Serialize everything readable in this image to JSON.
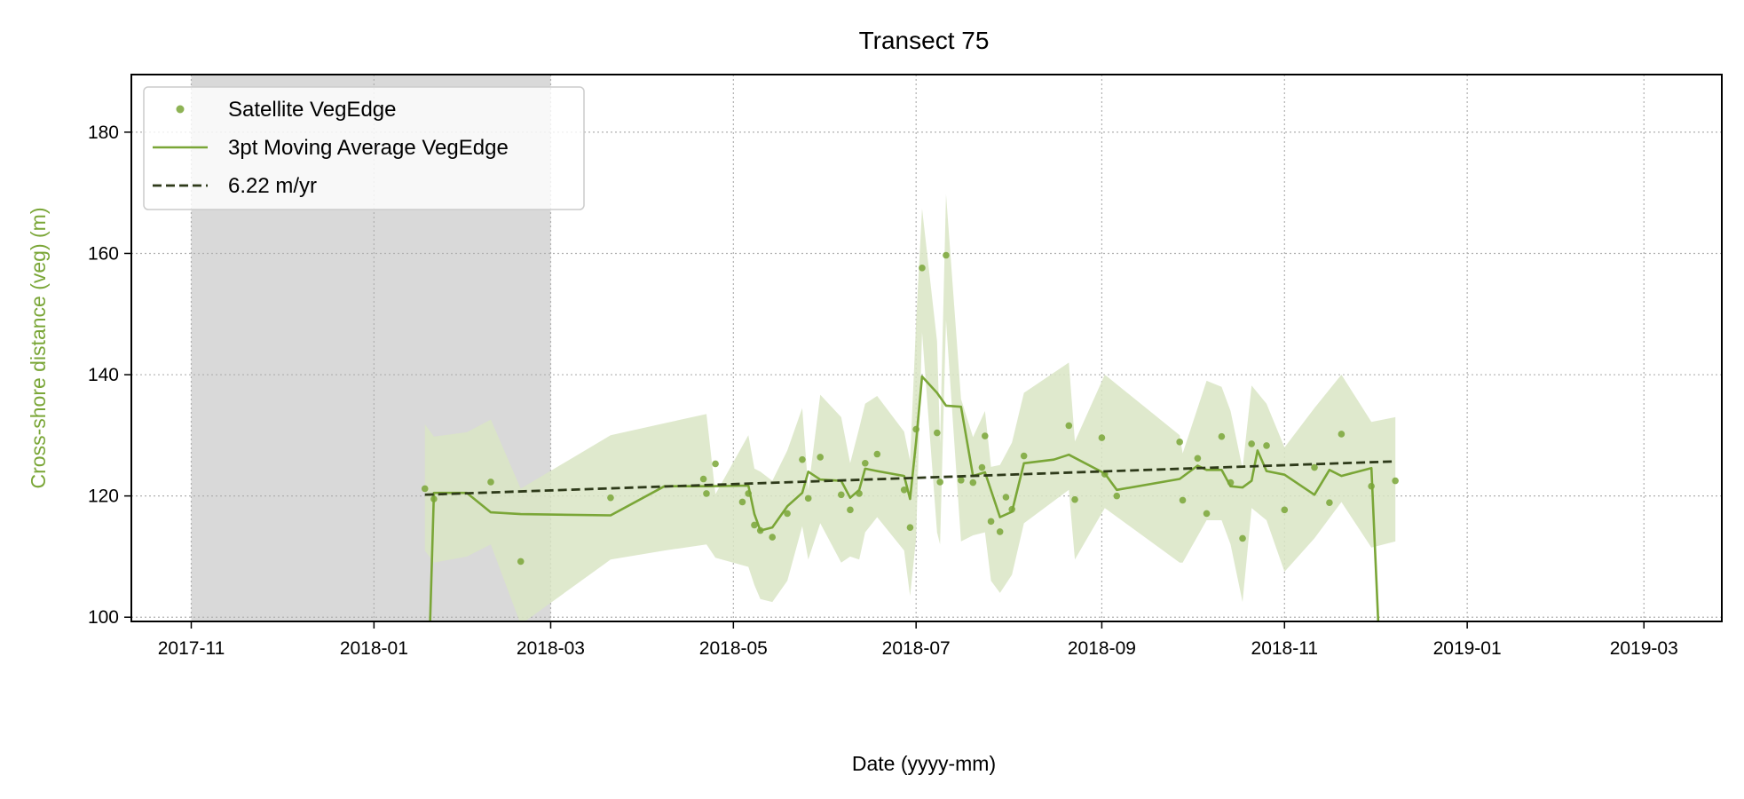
{
  "chart_data": {
    "type": "line",
    "title": "Transect 75",
    "xlabel": "Date (yyyy-mm)",
    "ylabel": "Cross-shore distance (veg) (m)",
    "xlim": [
      "2017-10-12",
      "2019-03-27"
    ],
    "ylim": [
      99.3,
      189.5
    ],
    "x_ticks": [
      "2017-11",
      "2018-01",
      "2018-03",
      "2018-05",
      "2018-07",
      "2018-09",
      "2018-11",
      "2019-01",
      "2019-03"
    ],
    "y_ticks": [
      100,
      120,
      140,
      160,
      180
    ],
    "grid": true,
    "legend_position": "top-left",
    "shaded_period": [
      "2017-11-01",
      "2018-03-01"
    ],
    "colors": {
      "veg": "#7aa637",
      "veg_band": "#d9e5c4",
      "trend": "#2e3a1a",
      "shade": "#d9d9d9",
      "grid": "#b0b0b0"
    },
    "series": [
      {
        "name": "Satellite VegEdge",
        "kind": "scatter",
        "points": [
          [
            "2018-01-18",
            121.2
          ],
          [
            "2018-01-21",
            119.5
          ],
          [
            "2018-02-09",
            122.3
          ],
          [
            "2018-02-19",
            109.2
          ],
          [
            "2018-03-21",
            119.7
          ],
          [
            "2018-04-21",
            122.8
          ],
          [
            "2018-04-22",
            120.4
          ],
          [
            "2018-04-25",
            125.3
          ],
          [
            "2018-05-04",
            119.0
          ],
          [
            "2018-05-06",
            120.4
          ],
          [
            "2018-05-08",
            115.2
          ],
          [
            "2018-05-10",
            114.3
          ],
          [
            "2018-05-14",
            113.2
          ],
          [
            "2018-05-19",
            117.1
          ],
          [
            "2018-05-24",
            126.0
          ],
          [
            "2018-05-26",
            119.6
          ],
          [
            "2018-05-30",
            126.4
          ],
          [
            "2018-06-06",
            120.2
          ],
          [
            "2018-06-09",
            117.7
          ],
          [
            "2018-06-12",
            120.4
          ],
          [
            "2018-06-14",
            125.4
          ],
          [
            "2018-06-18",
            126.9
          ],
          [
            "2018-06-27",
            121.0
          ],
          [
            "2018-06-29",
            114.8
          ],
          [
            "2018-07-01",
            131.0
          ],
          [
            "2018-07-03",
            157.6
          ],
          [
            "2018-07-08",
            130.4
          ],
          [
            "2018-07-09",
            122.3
          ],
          [
            "2018-07-11",
            159.7
          ],
          [
            "2018-07-16",
            122.6
          ],
          [
            "2018-07-20",
            122.2
          ],
          [
            "2018-07-23",
            124.7
          ],
          [
            "2018-07-24",
            129.9
          ],
          [
            "2018-07-26",
            115.8
          ],
          [
            "2018-07-29",
            114.1
          ],
          [
            "2018-07-31",
            119.8
          ],
          [
            "2018-08-02",
            117.8
          ],
          [
            "2018-08-06",
            126.6
          ],
          [
            "2018-08-21",
            131.6
          ],
          [
            "2018-08-23",
            119.4
          ],
          [
            "2018-09-01",
            129.6
          ],
          [
            "2018-09-02",
            123.6
          ],
          [
            "2018-09-06",
            120.0
          ],
          [
            "2018-09-27",
            128.9
          ],
          [
            "2018-09-28",
            119.3
          ],
          [
            "2018-10-03",
            126.2
          ],
          [
            "2018-10-06",
            117.1
          ],
          [
            "2018-10-11",
            129.8
          ],
          [
            "2018-10-14",
            122.2
          ],
          [
            "2018-10-18",
            113.0
          ],
          [
            "2018-10-21",
            128.6
          ],
          [
            "2018-10-26",
            128.3
          ],
          [
            "2018-11-01",
            117.7
          ],
          [
            "2018-11-11",
            124.7
          ],
          [
            "2018-11-16",
            118.9
          ],
          [
            "2018-11-20",
            130.2
          ],
          [
            "2018-11-30",
            121.6
          ],
          [
            "2018-12-08",
            122.5
          ]
        ]
      },
      {
        "name": "3pt Moving Average VegEdge",
        "kind": "line",
        "points": [
          [
            "2018-01-18",
            70.0
          ],
          [
            "2018-01-21",
            120.5
          ],
          [
            "2018-02-01",
            120.5
          ],
          [
            "2018-02-09",
            117.3
          ],
          [
            "2018-02-19",
            117.0
          ],
          [
            "2018-03-21",
            116.8
          ],
          [
            "2018-04-08",
            121.6
          ],
          [
            "2018-04-22",
            121.6
          ],
          [
            "2018-05-06",
            121.7
          ],
          [
            "2018-05-08",
            117.0
          ],
          [
            "2018-05-10",
            114.3
          ],
          [
            "2018-05-14",
            114.8
          ],
          [
            "2018-05-19",
            118.3
          ],
          [
            "2018-05-24",
            120.5
          ],
          [
            "2018-05-26",
            124.0
          ],
          [
            "2018-05-30",
            122.7
          ],
          [
            "2018-06-06",
            122.5
          ],
          [
            "2018-06-09",
            119.7
          ],
          [
            "2018-06-12",
            121.0
          ],
          [
            "2018-06-14",
            124.5
          ],
          [
            "2018-06-18",
            124.1
          ],
          [
            "2018-06-27",
            123.3
          ],
          [
            "2018-06-29",
            119.5
          ],
          [
            "2018-07-01",
            129.0
          ],
          [
            "2018-07-03",
            139.7
          ],
          [
            "2018-07-08",
            137.0
          ],
          [
            "2018-07-11",
            134.9
          ],
          [
            "2018-07-16",
            134.7
          ],
          [
            "2018-07-20",
            123.3
          ],
          [
            "2018-07-24",
            123.9
          ],
          [
            "2018-07-29",
            116.5
          ],
          [
            "2018-08-02",
            117.4
          ],
          [
            "2018-08-06",
            125.4
          ],
          [
            "2018-08-16",
            126.0
          ],
          [
            "2018-08-21",
            126.8
          ],
          [
            "2018-09-02",
            123.7
          ],
          [
            "2018-09-06",
            121.0
          ],
          [
            "2018-09-27",
            122.8
          ],
          [
            "2018-10-03",
            125.0
          ],
          [
            "2018-10-06",
            124.3
          ],
          [
            "2018-10-11",
            124.3
          ],
          [
            "2018-10-14",
            121.6
          ],
          [
            "2018-10-18",
            121.4
          ],
          [
            "2018-10-21",
            122.5
          ],
          [
            "2018-10-23",
            127.5
          ],
          [
            "2018-10-26",
            124.1
          ],
          [
            "2018-11-01",
            123.5
          ],
          [
            "2018-11-11",
            120.2
          ],
          [
            "2018-11-16",
            124.3
          ],
          [
            "2018-11-20",
            123.3
          ],
          [
            "2018-11-30",
            124.6
          ],
          [
            "2018-12-04",
            80.0
          ]
        ]
      },
      {
        "name": "6.22 m/yr",
        "kind": "trend",
        "points": [
          [
            "2018-01-18",
            120.2
          ],
          [
            "2018-12-08",
            125.7
          ]
        ]
      }
    ],
    "uncertainty_band": {
      "x": [
        "2018-01-18",
        "2018-01-21",
        "2018-02-01",
        "2018-02-09",
        "2018-02-19",
        "2018-03-21",
        "2018-04-08",
        "2018-04-22",
        "2018-04-25",
        "2018-05-06",
        "2018-05-08",
        "2018-05-10",
        "2018-05-14",
        "2018-05-19",
        "2018-05-24",
        "2018-05-26",
        "2018-05-30",
        "2018-06-06",
        "2018-06-09",
        "2018-06-12",
        "2018-06-14",
        "2018-06-18",
        "2018-06-27",
        "2018-06-29",
        "2018-07-01",
        "2018-07-03",
        "2018-07-08",
        "2018-07-09",
        "2018-07-11",
        "2018-07-16",
        "2018-07-20",
        "2018-07-24",
        "2018-07-26",
        "2018-07-29",
        "2018-08-02",
        "2018-08-06",
        "2018-08-21",
        "2018-08-23",
        "2018-09-02",
        "2018-09-27",
        "2018-09-28",
        "2018-10-06",
        "2018-10-11",
        "2018-10-14",
        "2018-10-18",
        "2018-10-21",
        "2018-10-26",
        "2018-11-01",
        "2018-11-11",
        "2018-11-20",
        "2018-11-30",
        "2018-12-08"
      ],
      "upper": [
        131.8,
        129.8,
        130.5,
        132.6,
        121.2,
        130.0,
        132.0,
        133.5,
        120.3,
        130.0,
        124.5,
        124.0,
        122.5,
        127.5,
        134.5,
        121.0,
        136.7,
        133.0,
        125.4,
        131.2,
        135.2,
        136.5,
        130.6,
        125.8,
        148.7,
        167.4,
        145.5,
        128.7,
        169.8,
        136.0,
        129.7,
        134.0,
        124.8,
        125.1,
        128.8,
        137.0,
        142.0,
        129.0,
        140.0,
        130.0,
        127.0,
        139.0,
        138.0,
        134.0,
        124.5,
        138.2,
        135.2,
        128.0,
        134.5,
        140.0,
        132.2,
        133.0
      ],
      "lower": [
        111.0,
        109.0,
        110.0,
        112.0,
        98.8,
        109.5,
        111.0,
        112.0,
        109.8,
        108.3,
        105.3,
        103.0,
        102.5,
        106.0,
        115.0,
        109.5,
        115.5,
        109.0,
        110.0,
        109.5,
        114.0,
        116.5,
        111.0,
        103.5,
        113.0,
        147.0,
        114.0,
        112.0,
        149.0,
        112.5,
        113.5,
        114.0,
        106.0,
        104.0,
        107.0,
        115.5,
        121.0,
        109.5,
        118.0,
        109.0,
        109.0,
        116.0,
        116.0,
        112.0,
        102.5,
        118.0,
        116.0,
        107.5,
        113.0,
        119.0,
        111.5,
        112.5
      ]
    }
  }
}
